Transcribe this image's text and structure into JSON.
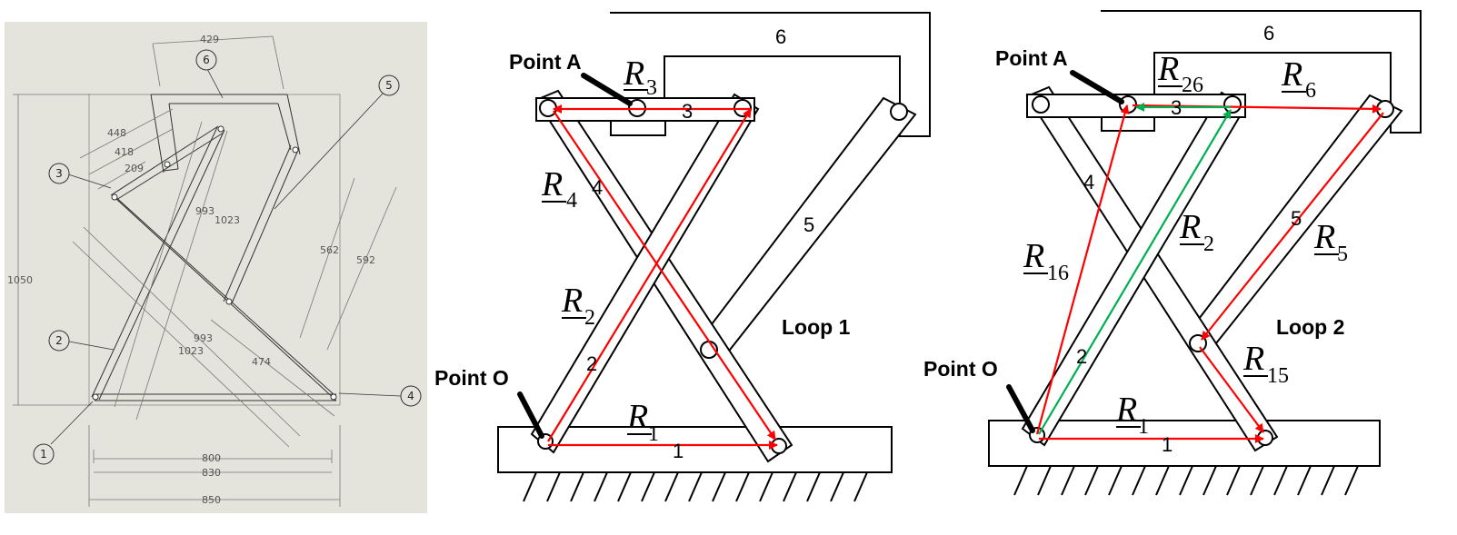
{
  "colors": {
    "cad_bg": "#e4e4dc",
    "loop_vector": "#ff0000",
    "coupler_vector": "#00b050",
    "link_stroke": "#000000"
  },
  "cad": {
    "dimensions": {
      "d429": "429",
      "d448": "448",
      "d418": "418",
      "d209": "209",
      "d993a": "993",
      "d1023a": "1023",
      "d1050": "1050",
      "d562": "562",
      "d592": "592",
      "d993b": "993",
      "d1023b": "1023",
      "d474": "474",
      "d800": "800",
      "d830": "830",
      "d850": "850"
    },
    "callouts": [
      "1",
      "2",
      "3",
      "4",
      "5",
      "6"
    ]
  },
  "loop1": {
    "point_a": "Point A",
    "point_o": "Point O",
    "title": "Loop 1",
    "links": [
      "1",
      "2",
      "3",
      "4",
      "5",
      "6"
    ],
    "vectors": {
      "r1": {
        "letter": "R",
        "sub": "1"
      },
      "r2": {
        "letter": "R",
        "sub": "2"
      },
      "r3": {
        "letter": "R",
        "sub": "3"
      },
      "r4": {
        "letter": "R",
        "sub": "4"
      }
    }
  },
  "loop2": {
    "point_a": "Point A",
    "point_o": "Point O",
    "title": "Loop 2",
    "links": [
      "1",
      "2",
      "3",
      "4",
      "5",
      "6"
    ],
    "vectors": {
      "r1": {
        "letter": "R",
        "sub": "1"
      },
      "r2": {
        "letter": "R",
        "sub": "2"
      },
      "r5": {
        "letter": "R",
        "sub": "5"
      },
      "r6": {
        "letter": "R",
        "sub": "6"
      },
      "r15": {
        "letter": "R",
        "sub": "15"
      },
      "r16": {
        "letter": "R",
        "sub": "16"
      },
      "r26": {
        "letter": "R",
        "sub": "26"
      }
    }
  }
}
